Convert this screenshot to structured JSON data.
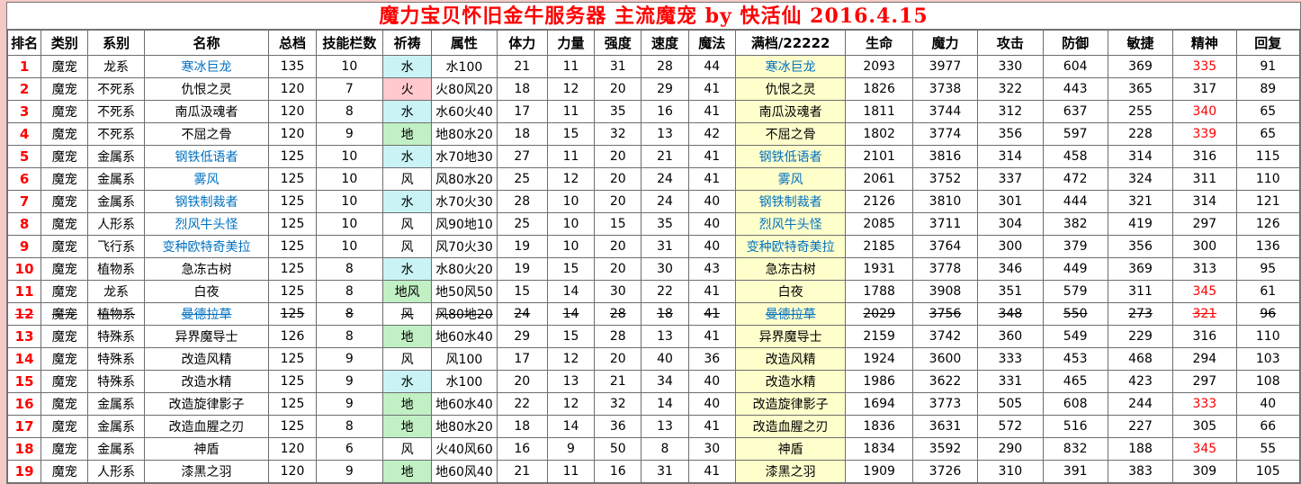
{
  "title": "魔力宝贝怀旧金牛服务器 主流魔宠 by 快活仙 2016.4.15",
  "colors": {
    "title_red": "#fe0000",
    "rank_red": "#fe0000",
    "name_blue": "#0070c0",
    "spirit_red": "#fe0000",
    "prayer_water": "#c9f3f5",
    "prayer_fire": "#ffc9cd",
    "prayer_earth": "#c2f0c5",
    "full_bg": "#ffffcc"
  },
  "table": {
    "columns": [
      "排名",
      "类别",
      "系别",
      "名称",
      "总档",
      "技能栏数",
      "祈祷",
      "属性",
      "体力",
      "力量",
      "强度",
      "速度",
      "魔法",
      "满档/22222",
      "生命",
      "魔力",
      "攻击",
      "防御",
      "敏捷",
      "精神",
      "回复"
    ],
    "column_keys": [
      "rank",
      "category",
      "family",
      "name",
      "total_grade",
      "skill_slots",
      "prayer",
      "attribute",
      "stamina",
      "strength",
      "power",
      "speed",
      "magic",
      "full_grade_name",
      "life",
      "mana",
      "attack",
      "defense",
      "agility",
      "spirit",
      "recovery"
    ],
    "rows": [
      {
        "cells": [
          "1",
          "魔宠",
          "龙系",
          "寒冰巨龙",
          "135",
          "10",
          "水",
          "水100",
          "21",
          "11",
          "31",
          "28",
          "44",
          "寒冰巨龙",
          "2093",
          "3977",
          "330",
          "604",
          "369",
          "335",
          "91"
        ],
        "name_blue": true,
        "prayer_type": "water",
        "spirit_red": true,
        "struck": false
      },
      {
        "cells": [
          "2",
          "魔宠",
          "不死系",
          "仇恨之灵",
          "120",
          "7",
          "火",
          "火80风20",
          "18",
          "12",
          "20",
          "29",
          "41",
          "仇恨之灵",
          "1826",
          "3738",
          "322",
          "443",
          "365",
          "317",
          "89"
        ],
        "name_blue": false,
        "prayer_type": "fire",
        "spirit_red": false,
        "struck": false
      },
      {
        "cells": [
          "3",
          "魔宠",
          "不死系",
          "南瓜汲魂者",
          "120",
          "8",
          "水",
          "水60火40",
          "17",
          "11",
          "35",
          "16",
          "41",
          "南瓜汲魂者",
          "1811",
          "3744",
          "312",
          "637",
          "255",
          "340",
          "65"
        ],
        "name_blue": false,
        "prayer_type": "water",
        "spirit_red": true,
        "struck": false
      },
      {
        "cells": [
          "4",
          "魔宠",
          "不死系",
          "不屈之骨",
          "120",
          "9",
          "地",
          "地80水20",
          "18",
          "15",
          "32",
          "13",
          "42",
          "不屈之骨",
          "1802",
          "3774",
          "356",
          "597",
          "228",
          "339",
          "65"
        ],
        "name_blue": false,
        "prayer_type": "earth",
        "spirit_red": true,
        "struck": false
      },
      {
        "cells": [
          "5",
          "魔宠",
          "金属系",
          "钢铁低语者",
          "125",
          "10",
          "水",
          "水70地30",
          "27",
          "11",
          "20",
          "21",
          "41",
          "钢铁低语者",
          "2101",
          "3816",
          "314",
          "458",
          "314",
          "316",
          "115"
        ],
        "name_blue": true,
        "prayer_type": "water",
        "spirit_red": false,
        "struck": false
      },
      {
        "cells": [
          "6",
          "魔宠",
          "金属系",
          "雾风",
          "125",
          "10",
          "风",
          "风80水20",
          "25",
          "12",
          "20",
          "24",
          "41",
          "雾风",
          "2061",
          "3752",
          "337",
          "472",
          "324",
          "311",
          "110"
        ],
        "name_blue": true,
        "prayer_type": "wind",
        "spirit_red": false,
        "struck": false
      },
      {
        "cells": [
          "7",
          "魔宠",
          "金属系",
          "钢铁制裁者",
          "125",
          "10",
          "水",
          "水70火30",
          "28",
          "10",
          "20",
          "24",
          "40",
          "钢铁制裁者",
          "2126",
          "3810",
          "301",
          "444",
          "321",
          "314",
          "121"
        ],
        "name_blue": true,
        "prayer_type": "water",
        "spirit_red": false,
        "struck": false
      },
      {
        "cells": [
          "8",
          "魔宠",
          "人形系",
          "烈风牛头怪",
          "125",
          "10",
          "风",
          "风90地10",
          "25",
          "10",
          "15",
          "35",
          "40",
          "烈风牛头怪",
          "2085",
          "3711",
          "304",
          "382",
          "419",
          "297",
          "126"
        ],
        "name_blue": true,
        "prayer_type": "wind",
        "spirit_red": false,
        "struck": false
      },
      {
        "cells": [
          "9",
          "魔宠",
          "飞行系",
          "变种欧特奇美拉",
          "125",
          "10",
          "风",
          "风70火30",
          "19",
          "10",
          "20",
          "31",
          "40",
          "变种欧特奇美拉",
          "2185",
          "3764",
          "300",
          "379",
          "356",
          "300",
          "136"
        ],
        "name_blue": true,
        "prayer_type": "wind",
        "spirit_red": false,
        "struck": false
      },
      {
        "cells": [
          "10",
          "魔宠",
          "植物系",
          "急冻古树",
          "125",
          "8",
          "水",
          "水80火20",
          "19",
          "15",
          "20",
          "30",
          "43",
          "急冻古树",
          "1931",
          "3778",
          "346",
          "449",
          "369",
          "313",
          "95"
        ],
        "name_blue": false,
        "prayer_type": "water",
        "spirit_red": false,
        "struck": false
      },
      {
        "cells": [
          "11",
          "魔宠",
          "龙系",
          "白夜",
          "125",
          "8",
          "地风",
          "地50风50",
          "15",
          "14",
          "30",
          "22",
          "41",
          "白夜",
          "1788",
          "3908",
          "351",
          "579",
          "311",
          "345",
          "61"
        ],
        "name_blue": false,
        "prayer_type": "earthwind",
        "spirit_red": true,
        "struck": false
      },
      {
        "cells": [
          "12",
          "魔宠",
          "植物系",
          "曼德拉草",
          "125",
          "8",
          "风",
          "风80地20",
          "24",
          "14",
          "28",
          "18",
          "41",
          "曼德拉草",
          "2029",
          "3756",
          "348",
          "550",
          "273",
          "321",
          "96"
        ],
        "name_blue": true,
        "prayer_type": "wind",
        "spirit_red": true,
        "struck": true
      },
      {
        "cells": [
          "13",
          "魔宠",
          "特殊系",
          "异界魔导士",
          "126",
          "8",
          "地",
          "地60水40",
          "29",
          "15",
          "28",
          "13",
          "41",
          "异界魔导士",
          "2159",
          "3742",
          "360",
          "549",
          "229",
          "316",
          "110"
        ],
        "name_blue": false,
        "prayer_type": "earth",
        "spirit_red": false,
        "struck": false
      },
      {
        "cells": [
          "14",
          "魔宠",
          "特殊系",
          "改造风精",
          "125",
          "9",
          "风",
          "风100",
          "17",
          "12",
          "20",
          "40",
          "36",
          "改造风精",
          "1924",
          "3600",
          "333",
          "453",
          "468",
          "294",
          "103"
        ],
        "name_blue": false,
        "prayer_type": "wind",
        "spirit_red": false,
        "struck": false
      },
      {
        "cells": [
          "15",
          "魔宠",
          "特殊系",
          "改造水精",
          "125",
          "9",
          "水",
          "水100",
          "20",
          "13",
          "21",
          "34",
          "40",
          "改造水精",
          "1986",
          "3622",
          "331",
          "465",
          "423",
          "297",
          "108"
        ],
        "name_blue": false,
        "prayer_type": "water",
        "spirit_red": false,
        "struck": false
      },
      {
        "cells": [
          "16",
          "魔宠",
          "金属系",
          "改造旋律影子",
          "125",
          "9",
          "地",
          "地60水40",
          "22",
          "12",
          "32",
          "14",
          "40",
          "改造旋律影子",
          "1694",
          "3773",
          "505",
          "608",
          "244",
          "333",
          "40"
        ],
        "name_blue": false,
        "prayer_type": "earth",
        "spirit_red": true,
        "struck": false
      },
      {
        "cells": [
          "17",
          "魔宠",
          "金属系",
          "改造血腥之刃",
          "125",
          "8",
          "地",
          "地80水20",
          "18",
          "14",
          "36",
          "13",
          "41",
          "改造血腥之刃",
          "1836",
          "3631",
          "572",
          "516",
          "227",
          "305",
          "66"
        ],
        "name_blue": false,
        "prayer_type": "earth",
        "spirit_red": false,
        "struck": false
      },
      {
        "cells": [
          "18",
          "魔宠",
          "金属系",
          "神盾",
          "120",
          "6",
          "风",
          "火40风60",
          "16",
          "9",
          "50",
          "8",
          "30",
          "神盾",
          "1834",
          "3592",
          "290",
          "832",
          "188",
          "345",
          "55"
        ],
        "name_blue": false,
        "prayer_type": "wind",
        "spirit_red": true,
        "struck": false
      },
      {
        "cells": [
          "19",
          "魔宠",
          "人形系",
          "漆黑之羽",
          "120",
          "9",
          "地",
          "地60风40",
          "21",
          "11",
          "16",
          "31",
          "41",
          "漆黑之羽",
          "1909",
          "3726",
          "310",
          "391",
          "383",
          "309",
          "105"
        ],
        "name_blue": false,
        "prayer_type": "earth",
        "spirit_red": false,
        "struck": false
      }
    ]
  }
}
